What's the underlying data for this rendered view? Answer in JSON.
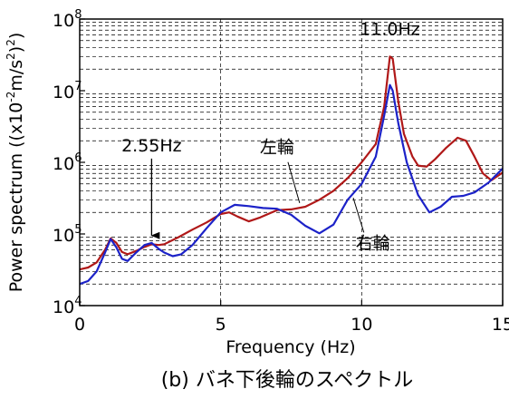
{
  "chart_data": {
    "type": "line",
    "title": "",
    "caption": "(b) バネ下後輪のスペクトル",
    "xlabel": "Frequency (Hz)",
    "ylabel_prefix": "Power spectrum ((x10",
    "ylabel_exp1": "-2",
    "ylabel_mid": "m/s",
    "ylabel_exp2": "2",
    "ylabel_suffix": ")",
    "ylabel_exp3": "2",
    "ylabel_end": ")",
    "x_range": [
      0,
      15
    ],
    "y_range": [
      10000,
      100000000
    ],
    "y_scale": "log",
    "x_ticks": [
      {
        "value": 0,
        "label": "0"
      },
      {
        "value": 5,
        "label": "5"
      },
      {
        "value": 10,
        "label": "10"
      },
      {
        "value": 15,
        "label": "15"
      }
    ],
    "y_ticks": [
      {
        "value": 10000,
        "base": "10",
        "exp": "4"
      },
      {
        "value": 100000,
        "base": "10",
        "exp": "5"
      },
      {
        "value": 1000000,
        "base": "10",
        "exp": "6"
      },
      {
        "value": 10000000,
        "base": "10",
        "exp": "7"
      },
      {
        "value": 100000000,
        "base": "10",
        "exp": "8"
      }
    ],
    "grid": {
      "vertical": true,
      "horizontal_minor_log": true,
      "style": "dashed"
    },
    "annotations": [
      {
        "text": "11.0Hz",
        "x": 11.0,
        "y": 60000000
      },
      {
        "text": "2.55Hz",
        "x": 2.55,
        "y": 1600000,
        "arrow_to": [
          2.55,
          95000
        ]
      },
      {
        "text": "左輪",
        "x": 7.0,
        "y": 1350000,
        "leader_to": [
          7.8,
          270000
        ]
      },
      {
        "text": "右輪",
        "x": 10.4,
        "y": 62000,
        "leader_to": [
          9.7,
          320000
        ]
      }
    ],
    "series": [
      {
        "name": "左輪",
        "color": "#b01818",
        "points": [
          [
            0.0,
            32000
          ],
          [
            0.3,
            34000
          ],
          [
            0.6,
            40000
          ],
          [
            0.9,
            60000
          ],
          [
            1.1,
            87000
          ],
          [
            1.3,
            75000
          ],
          [
            1.5,
            56000
          ],
          [
            1.7,
            52000
          ],
          [
            2.0,
            58000
          ],
          [
            2.3,
            66000
          ],
          [
            2.55,
            72000
          ],
          [
            2.8,
            70000
          ],
          [
            3.0,
            72000
          ],
          [
            3.5,
            90000
          ],
          [
            4.0,
            115000
          ],
          [
            4.5,
            145000
          ],
          [
            5.0,
            190000
          ],
          [
            5.3,
            200000
          ],
          [
            5.6,
            175000
          ],
          [
            6.0,
            150000
          ],
          [
            6.4,
            170000
          ],
          [
            7.0,
            215000
          ],
          [
            7.5,
            220000
          ],
          [
            8.0,
            240000
          ],
          [
            8.5,
            300000
          ],
          [
            9.0,
            400000
          ],
          [
            9.5,
            600000
          ],
          [
            10.0,
            1000000
          ],
          [
            10.5,
            1800000
          ],
          [
            10.8,
            6000000
          ],
          [
            11.0,
            30000000
          ],
          [
            11.1,
            28000000
          ],
          [
            11.3,
            7000000
          ],
          [
            11.5,
            2500000
          ],
          [
            11.8,
            1200000
          ],
          [
            12.0,
            900000
          ],
          [
            12.3,
            870000
          ],
          [
            12.6,
            1100000
          ],
          [
            13.0,
            1600000
          ],
          [
            13.4,
            2200000
          ],
          [
            13.7,
            2000000
          ],
          [
            14.0,
            1200000
          ],
          [
            14.3,
            700000
          ],
          [
            14.6,
            560000
          ],
          [
            15.0,
            720000
          ]
        ]
      },
      {
        "name": "右輪",
        "color": "#1c22c8",
        "points": [
          [
            0.0,
            20000
          ],
          [
            0.3,
            22000
          ],
          [
            0.6,
            30000
          ],
          [
            0.9,
            55000
          ],
          [
            1.1,
            85000
          ],
          [
            1.3,
            65000
          ],
          [
            1.5,
            45000
          ],
          [
            1.7,
            42000
          ],
          [
            2.0,
            55000
          ],
          [
            2.3,
            70000
          ],
          [
            2.55,
            75000
          ],
          [
            2.8,
            62000
          ],
          [
            3.0,
            55000
          ],
          [
            3.3,
            49000
          ],
          [
            3.6,
            52000
          ],
          [
            4.0,
            70000
          ],
          [
            4.5,
            120000
          ],
          [
            5.0,
            200000
          ],
          [
            5.5,
            255000
          ],
          [
            6.0,
            245000
          ],
          [
            6.5,
            230000
          ],
          [
            7.0,
            225000
          ],
          [
            7.5,
            185000
          ],
          [
            8.0,
            130000
          ],
          [
            8.5,
            102000
          ],
          [
            9.0,
            135000
          ],
          [
            9.5,
            300000
          ],
          [
            10.0,
            500000
          ],
          [
            10.5,
            1200000
          ],
          [
            10.8,
            4500000
          ],
          [
            11.0,
            12000000
          ],
          [
            11.1,
            10000000
          ],
          [
            11.3,
            3500000
          ],
          [
            11.6,
            1000000
          ],
          [
            12.0,
            350000
          ],
          [
            12.4,
            200000
          ],
          [
            12.8,
            240000
          ],
          [
            13.2,
            330000
          ],
          [
            13.6,
            340000
          ],
          [
            14.0,
            380000
          ],
          [
            14.5,
            520000
          ],
          [
            15.0,
            820000
          ]
        ]
      }
    ]
  }
}
